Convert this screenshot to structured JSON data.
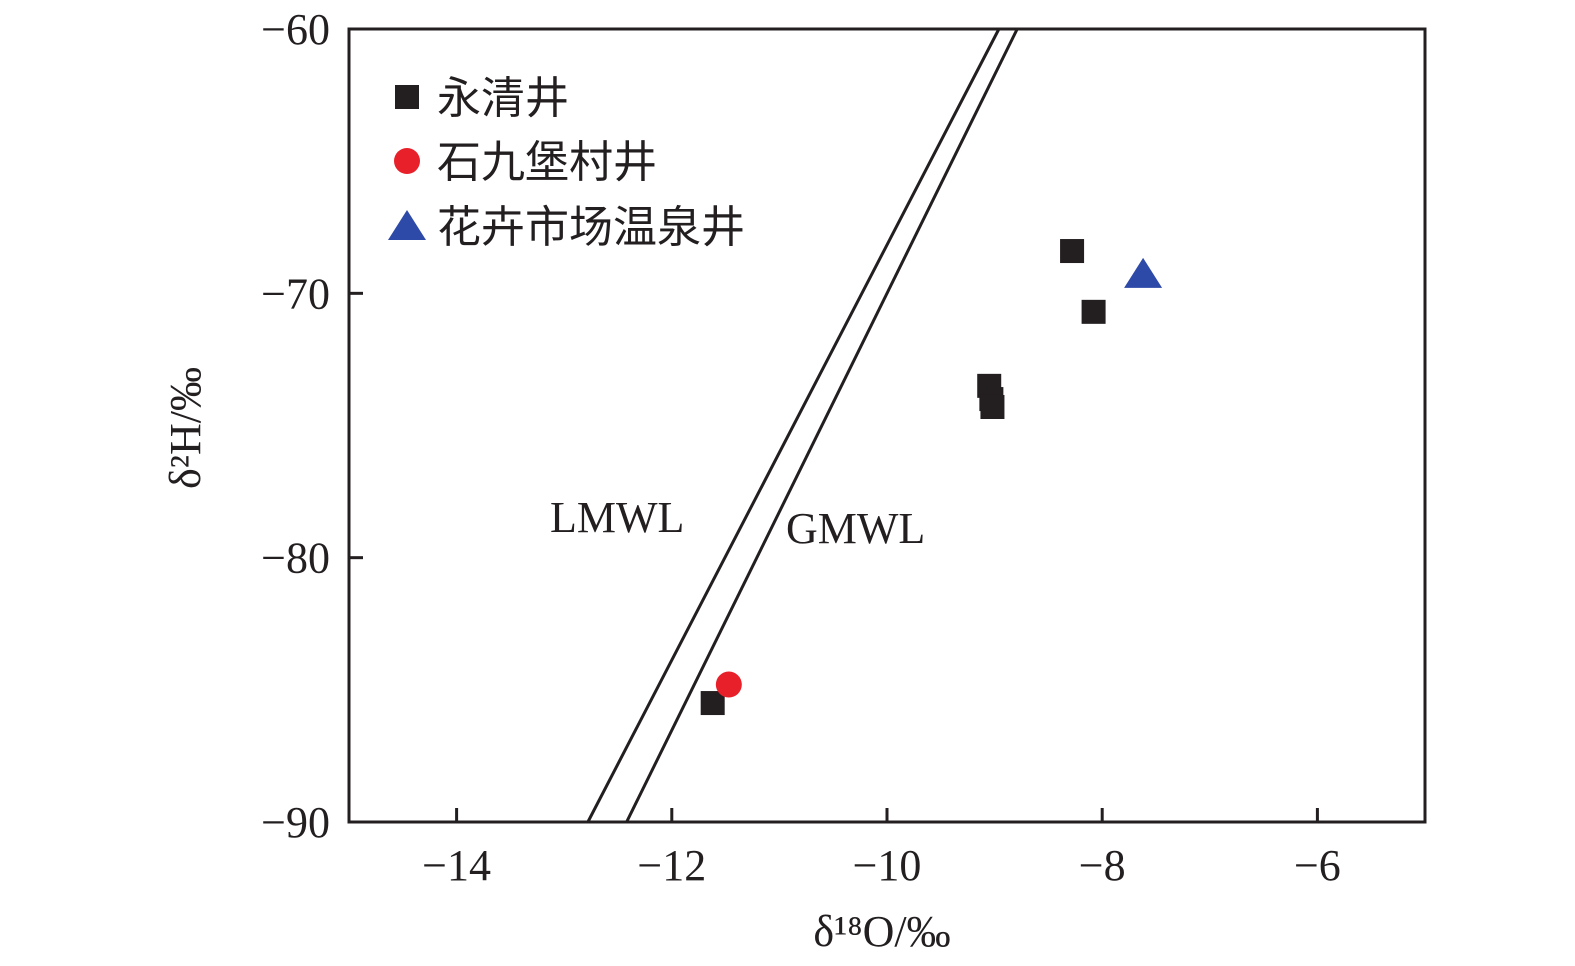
{
  "chart_data": {
    "type": "scatter",
    "title": "",
    "xlabel": "δ¹⁸O/‰",
    "ylabel": "δ²H/‰",
    "xlim": [
      -15,
      -5
    ],
    "ylim": [
      -90,
      -60
    ],
    "xticks": [
      -14,
      -12,
      -10,
      -8,
      -6
    ],
    "yticks": [
      -90,
      -80,
      -70,
      -60
    ],
    "xtick_labels": [
      "−14",
      "−12",
      "−10",
      "−8",
      "−6"
    ],
    "ytick_labels": [
      "−90",
      "−80",
      "−70",
      "−60"
    ],
    "grid": false,
    "legend_position": "top-left",
    "series": [
      {
        "name": "永清井",
        "marker": "square",
        "color": "#231f20",
        "points": [
          {
            "x": -8.28,
            "y": -68.4
          },
          {
            "x": -8.08,
            "y": -70.7
          },
          {
            "x": -9.05,
            "y": -73.5
          },
          {
            "x": -9.03,
            "y": -74.0
          },
          {
            "x": -9.02,
            "y": -74.3
          },
          {
            "x": -11.62,
            "y": -85.5
          }
        ]
      },
      {
        "name": "石九堡村井",
        "marker": "circle",
        "color": "#e8202a",
        "points": [
          {
            "x": -11.47,
            "y": -84.8
          }
        ]
      },
      {
        "name": "花卉市场温泉井",
        "marker": "triangle",
        "color": "#2e4aa8",
        "points": [
          {
            "x": -7.62,
            "y": -69.3
          }
        ]
      }
    ],
    "reference_lines": [
      {
        "name": "LMWL",
        "points": [
          {
            "x": -12.78,
            "y": -90
          },
          {
            "x": -8.96,
            "y": -60
          }
        ]
      },
      {
        "name": "GMWL",
        "points": [
          {
            "x": -12.42,
            "y": -90
          },
          {
            "x": -8.79,
            "y": -60
          }
        ]
      }
    ]
  }
}
